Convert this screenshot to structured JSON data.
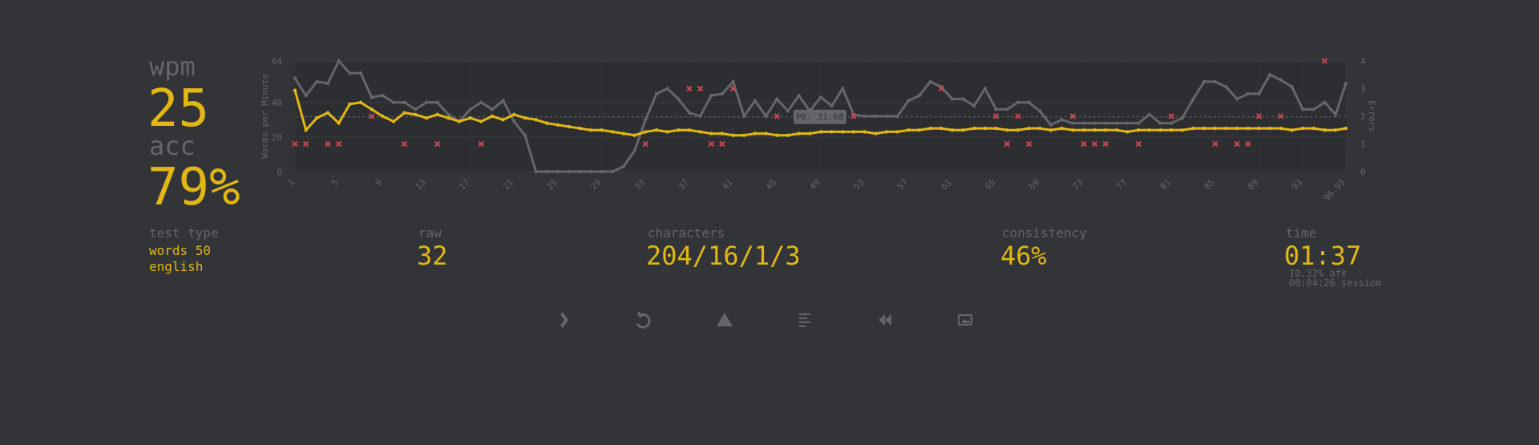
{
  "stats": {
    "wpm_label": "wpm",
    "wpm": "25",
    "acc_label": "acc",
    "acc": "79%",
    "test_type_label": "test type",
    "test_type": [
      "words 50",
      "english"
    ],
    "raw_label": "raw",
    "raw": "32",
    "characters_label": "characters",
    "characters": "204/16/1/3",
    "consistency_label": "consistency",
    "consistency": "46%",
    "time_label": "time",
    "time": "01:37",
    "afk": "10.32% afk",
    "session": "00:04:26 session"
  },
  "chart_data": {
    "type": "line",
    "y_label": "Words per Minute",
    "y2_label": "Errors",
    "x": [
      1,
      2,
      3,
      4,
      5,
      6,
      7,
      8,
      9,
      10,
      11,
      12,
      13,
      14,
      15,
      16,
      17,
      18,
      19,
      20,
      21,
      22,
      23,
      24,
      25,
      26,
      27,
      28,
      29,
      30,
      31,
      32,
      33,
      34,
      35,
      36,
      37,
      38,
      39,
      40,
      41,
      42,
      43,
      44,
      45,
      46,
      47,
      48,
      49,
      50,
      51,
      52,
      53,
      54,
      55,
      56,
      57,
      58,
      59,
      60,
      61,
      62,
      63,
      64,
      65,
      66,
      67,
      68,
      69,
      70,
      71,
      72,
      73,
      74,
      75,
      76,
      77,
      78,
      79,
      80,
      81,
      82,
      83,
      84,
      85,
      86,
      87,
      88,
      89,
      90,
      91,
      92,
      93,
      94,
      95,
      96,
      96.93
    ],
    "series": [
      {
        "color": "#646669",
        "values": [
          54,
          44,
          52,
          51,
          64,
          57,
          57,
          43,
          44,
          40,
          40,
          36,
          40,
          40,
          33,
          29,
          36,
          40,
          36,
          41,
          29,
          21,
          0,
          0,
          0,
          0,
          0,
          0,
          0,
          0,
          3,
          12,
          30,
          45,
          48,
          42,
          34,
          32,
          44,
          45,
          52,
          32,
          41,
          32,
          42,
          35,
          44,
          35,
          43,
          38,
          48,
          33,
          32,
          32,
          32,
          32,
          41,
          44,
          52,
          49,
          42,
          42,
          38,
          48,
          36,
          36,
          40,
          40,
          35,
          27,
          30,
          28,
          28,
          28,
          28,
          28,
          28,
          28,
          33,
          28,
          28,
          31,
          42,
          52,
          52,
          49,
          42,
          45,
          45,
          56,
          53,
          49,
          36,
          36,
          40,
          33,
          51
        ]
      },
      {
        "color": "#e2b714",
        "values": [
          47,
          24,
          31,
          34,
          28,
          39,
          40,
          36,
          32,
          29,
          34,
          33,
          31,
          33,
          31,
          29,
          31,
          29,
          32,
          30,
          33,
          31,
          30,
          28,
          27,
          26,
          25,
          24,
          24,
          23,
          22,
          21,
          23,
          24,
          23,
          24,
          24,
          23,
          22,
          22,
          21,
          21,
          22,
          22,
          21,
          21,
          22,
          22,
          23,
          23,
          23,
          23,
          23,
          22,
          23,
          23,
          24,
          24,
          25,
          25,
          24,
          24,
          25,
          25,
          25,
          24,
          24,
          25,
          25,
          24,
          25,
          24,
          24,
          24,
          24,
          24,
          23,
          24,
          24,
          24,
          24,
          24,
          25,
          25,
          25,
          25,
          25,
          25,
          25,
          25,
          25,
          24,
          25,
          25,
          24,
          24,
          25
        ]
      },
      {
        "type": "scatter",
        "axis": "y2",
        "color": "#ca4754",
        "x": [
          1,
          2,
          4,
          5,
          8,
          11,
          14,
          18,
          33,
          37,
          38,
          39,
          40,
          41,
          45,
          52,
          60,
          65,
          66,
          67,
          68,
          72,
          73,
          74,
          75,
          78,
          81,
          85,
          87,
          88,
          89,
          91,
          95
        ],
        "values": [
          1,
          1,
          1,
          1,
          2,
          1,
          1,
          1,
          1,
          3,
          3,
          1,
          1,
          3,
          2,
          2,
          3,
          2,
          1,
          2,
          1,
          2,
          1,
          1,
          1,
          1,
          2,
          1,
          1,
          1,
          2,
          2,
          4
        ]
      }
    ],
    "pb_line": {
      "value": 31.68,
      "label": "PB: 31.68"
    },
    "xlim": [
      1,
      96.93
    ],
    "xticks": [
      1,
      5,
      9,
      13,
      17,
      21,
      25,
      29,
      33,
      37,
      41,
      45,
      49,
      53,
      57,
      61,
      65,
      69,
      73,
      77,
      81,
      85,
      89,
      93,
      96.93
    ],
    "ylim": [
      0,
      64
    ],
    "yticks": [
      0,
      20,
      40,
      64
    ],
    "y2lim": [
      0,
      4
    ],
    "y2ticks": [
      0,
      1,
      2,
      3,
      4
    ],
    "grid": true
  }
}
